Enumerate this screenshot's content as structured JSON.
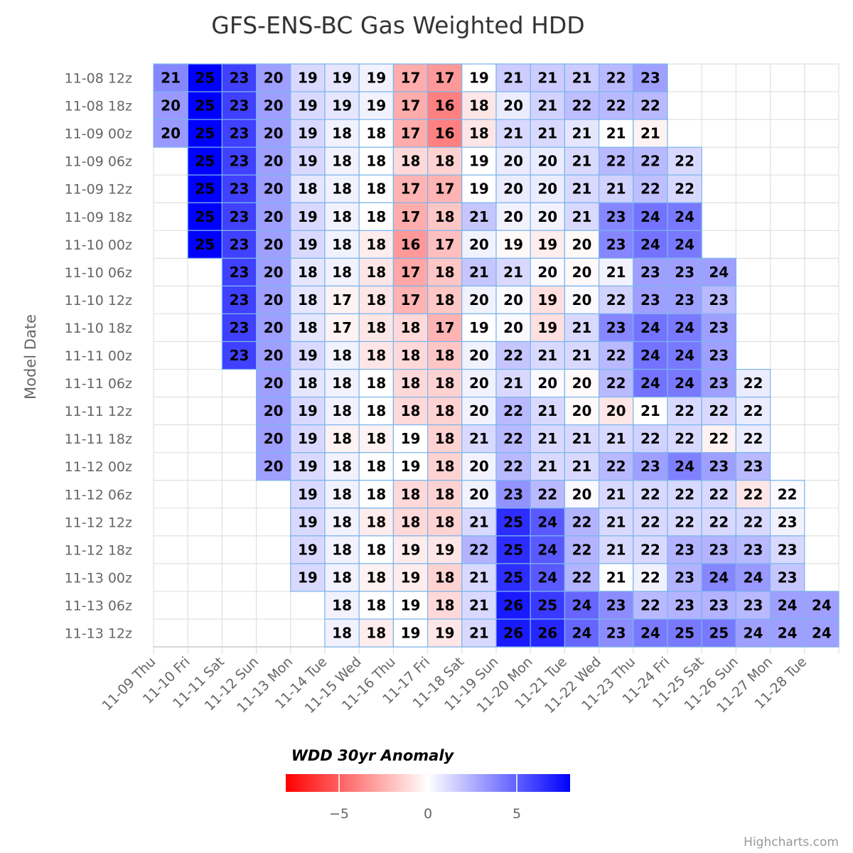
{
  "chart_data": {
    "type": "heatmap",
    "title": "GFS-ENS-BC Gas Weighted HDD",
    "ylabel": "Model Date",
    "x_categories": [
      "11-09 Thu",
      "11-10 Fri",
      "11-11 Sat",
      "11-12 Sun",
      "11-13 Mon",
      "11-14 Tue",
      "11-15 Wed",
      "11-16 Thu",
      "11-17 Fri",
      "11-18 Sat",
      "11-19 Sun",
      "11-20 Mon",
      "11-21 Tue",
      "11-22 Wed",
      "11-23 Thu",
      "11-24 Fri",
      "11-25 Sat",
      "11-26 Sun",
      "11-27 Mon",
      "11-28 Tue"
    ],
    "y_categories": [
      "11-08 12z",
      "11-08 18z",
      "11-09 00z",
      "11-09 06z",
      "11-09 12z",
      "11-09 18z",
      "11-10 00z",
      "11-10 06z",
      "11-10 12z",
      "11-10 18z",
      "11-11 00z",
      "11-11 06z",
      "11-11 12z",
      "11-11 18z",
      "11-12 00z",
      "11-12 06z",
      "11-12 12z",
      "11-12 18z",
      "11-13 00z",
      "11-13 06z",
      "11-13 12z"
    ],
    "rows": [
      {
        "start": 0,
        "values": [
          21,
          25,
          23,
          20,
          19,
          19,
          19,
          17,
          17,
          19,
          21,
          21,
          21,
          22,
          23
        ],
        "anomaly": [
          3.8,
          8,
          6,
          3,
          1.2,
          0.8,
          0.4,
          -2.6,
          -3.2,
          0,
          1.6,
          1.6,
          1.6,
          2.2,
          3
        ]
      },
      {
        "start": 0,
        "values": [
          20,
          25,
          23,
          20,
          19,
          19,
          19,
          17,
          16,
          18,
          20,
          21,
          22,
          22,
          22
        ],
        "anomaly": [
          3.2,
          8,
          6,
          3,
          1.2,
          0.8,
          0.4,
          -2.6,
          -4,
          -0.8,
          0.6,
          1.4,
          2,
          2.2,
          2.2
        ]
      },
      {
        "start": 0,
        "values": [
          20,
          25,
          23,
          20,
          19,
          18,
          18,
          17,
          16,
          18,
          21,
          21,
          21,
          21,
          21
        ],
        "anomaly": [
          3.2,
          8,
          6,
          3,
          1.2,
          0.4,
          0,
          -2.6,
          -4,
          -0.8,
          1.2,
          1.2,
          0.8,
          0,
          -0.4
        ]
      },
      {
        "start": 1,
        "values": [
          25,
          23,
          20,
          19,
          18,
          18,
          18,
          18,
          19,
          20,
          20,
          21,
          22,
          22,
          22
        ],
        "anomaly": [
          8,
          6,
          3,
          1.2,
          0.4,
          0,
          -1.2,
          -1.4,
          0,
          0.6,
          0.6,
          1.2,
          2.2,
          2.2,
          1.2
        ]
      },
      {
        "start": 1,
        "values": [
          25,
          23,
          20,
          18,
          18,
          18,
          17,
          17,
          19,
          20,
          20,
          21,
          21,
          22,
          22
        ],
        "anomaly": [
          8,
          6,
          3,
          0.8,
          0.4,
          0,
          -2.4,
          -2.4,
          0,
          0.6,
          0.6,
          1.2,
          1.4,
          2,
          1.2
        ]
      },
      {
        "start": 1,
        "values": [
          25,
          23,
          20,
          19,
          18,
          18,
          17,
          18,
          21,
          20,
          20,
          21,
          23,
          24,
          24
        ],
        "anomaly": [
          8,
          6,
          3,
          1.2,
          0.4,
          0,
          -2.6,
          -1.8,
          1.8,
          0.4,
          0.4,
          1.2,
          3.8,
          4.4,
          4.2
        ]
      },
      {
        "start": 1,
        "values": [
          25,
          23,
          20,
          19,
          18,
          18,
          16,
          17,
          20,
          19,
          19,
          20,
          23,
          24,
          24
        ],
        "anomaly": [
          8,
          6,
          3,
          1.2,
          0.4,
          -0.6,
          -3.2,
          -2,
          0.4,
          -0.2,
          -0.6,
          -0.2,
          3.8,
          4.4,
          4.2
        ]
      },
      {
        "start": 2,
        "values": [
          23,
          20,
          18,
          18,
          18,
          17,
          18,
          21,
          21,
          20,
          20,
          21,
          23,
          23,
          24
        ],
        "anomaly": [
          6,
          3,
          0.8,
          0.4,
          -0.8,
          -2.8,
          -1.8,
          1.8,
          1.2,
          0.2,
          -0.2,
          0.4,
          3,
          3,
          3
        ]
      },
      {
        "start": 2,
        "values": [
          23,
          20,
          18,
          17,
          18,
          17,
          18,
          20,
          20,
          19,
          20,
          22,
          23,
          23,
          23
        ],
        "anomaly": [
          6,
          3,
          0.8,
          -0.4,
          -0.8,
          -2.4,
          -1.8,
          0.4,
          0.2,
          -1,
          0.2,
          1.4,
          3,
          3,
          2.2
        ]
      },
      {
        "start": 2,
        "values": [
          23,
          20,
          18,
          17,
          18,
          18,
          17,
          19,
          20,
          19,
          21,
          23,
          24,
          24,
          23
        ],
        "anomaly": [
          6,
          3,
          0.8,
          -0.4,
          -0.8,
          -1.2,
          -2.4,
          0,
          0.2,
          -1,
          1.2,
          3.8,
          4.4,
          4.2,
          3
        ]
      },
      {
        "start": 2,
        "values": [
          23,
          20,
          19,
          18,
          18,
          18,
          18,
          20,
          22,
          21,
          21,
          22,
          24,
          24,
          23
        ],
        "anomaly": [
          6,
          3,
          1.2,
          0.4,
          -0.8,
          -1.2,
          -1.8,
          0.4,
          1.8,
          1.2,
          1.2,
          2.2,
          4.4,
          4.2,
          3
        ]
      },
      {
        "start": 3,
        "values": [
          20,
          18,
          18,
          18,
          18,
          18,
          20,
          21,
          20,
          20,
          22,
          24,
          24,
          23,
          22
        ],
        "anomaly": [
          3,
          0.8,
          0.4,
          0,
          -1.2,
          -1.4,
          0.4,
          1.2,
          0.2,
          -0.2,
          2.2,
          4.4,
          4.2,
          3,
          0.6
        ]
      },
      {
        "start": 3,
        "values": [
          20,
          19,
          18,
          18,
          18,
          18,
          20,
          22,
          21,
          20,
          20,
          21,
          22,
          22,
          22
        ],
        "anomaly": [
          3,
          1.2,
          0.4,
          0,
          -1.2,
          -1.4,
          0.4,
          2.2,
          1.2,
          -0.2,
          -0.8,
          0,
          1.2,
          1.2,
          0.6
        ]
      },
      {
        "start": 3,
        "values": [
          20,
          19,
          18,
          18,
          19,
          18,
          21,
          22,
          21,
          21,
          21,
          22,
          22,
          22,
          22
        ],
        "anomaly": [
          3,
          1.2,
          -0.4,
          -0.4,
          0,
          -1.4,
          1.2,
          2.2,
          1.2,
          1.2,
          1.2,
          1.4,
          1.2,
          -0.4,
          0.6
        ]
      },
      {
        "start": 3,
        "values": [
          20,
          19,
          18,
          18,
          19,
          18,
          20,
          22,
          21,
          21,
          22,
          23,
          24,
          23,
          23
        ],
        "anomaly": [
          3,
          1.2,
          0.4,
          0,
          0,
          -1.4,
          0.4,
          2.2,
          1.2,
          1.2,
          2.2,
          3,
          4,
          3,
          2.2
        ]
      },
      {
        "start": 4,
        "values": [
          19,
          18,
          18,
          18,
          18,
          20,
          23,
          22,
          20,
          21,
          22,
          22,
          22,
          22,
          22
        ],
        "anomaly": [
          1.2,
          0.4,
          0,
          -1.2,
          -1.4,
          0.4,
          3.4,
          2.2,
          0.2,
          1.2,
          1.2,
          1.2,
          1.2,
          -0.8,
          0.2
        ]
      },
      {
        "start": 4,
        "values": [
          19,
          18,
          18,
          18,
          18,
          21,
          25,
          24,
          22,
          21,
          22,
          22,
          22,
          22,
          23
        ],
        "anomaly": [
          1.2,
          0.4,
          -0.6,
          -1.2,
          -1.4,
          1.2,
          6.6,
          5.2,
          2.4,
          1.2,
          1.2,
          1.2,
          1.2,
          1.2,
          0.4
        ]
      },
      {
        "start": 4,
        "values": [
          19,
          18,
          18,
          19,
          19,
          22,
          25,
          24,
          22,
          21,
          22,
          23,
          23,
          23,
          23
        ],
        "anomaly": [
          1.2,
          0.4,
          0,
          -0.6,
          -0.8,
          2.4,
          6.6,
          5.2,
          2.4,
          1.2,
          1.2,
          2.4,
          2.4,
          2.2,
          1.2
        ]
      },
      {
        "start": 4,
        "values": [
          19,
          18,
          18,
          19,
          18,
          21,
          25,
          24,
          22,
          21,
          22,
          23,
          24,
          24,
          23
        ],
        "anomaly": [
          1.2,
          0.4,
          -0.4,
          -0.6,
          -1.4,
          1.2,
          6.6,
          5.2,
          2.4,
          0,
          0.4,
          2.4,
          3.8,
          3.2,
          1.8
        ]
      },
      {
        "start": 5,
        "values": [
          18,
          18,
          19,
          18,
          21,
          26,
          25,
          24,
          23,
          22,
          23,
          23,
          23,
          24,
          24
        ],
        "anomaly": [
          0.4,
          0,
          0,
          -1.2,
          1.2,
          7.2,
          6.2,
          4.8,
          3.6,
          2.2,
          2.4,
          2.4,
          2.2,
          3,
          3
        ]
      },
      {
        "start": 5,
        "values": [
          18,
          18,
          19,
          19,
          21,
          26,
          26,
          24,
          23,
          24,
          25,
          25,
          24,
          24,
          24
        ],
        "anomaly": [
          0.4,
          -0.6,
          0,
          -0.8,
          1.2,
          7.2,
          6.8,
          4.8,
          3.6,
          4.2,
          4.2,
          4.2,
          3,
          3,
          3
        ]
      }
    ],
    "colorAxis": {
      "min": -8,
      "max": 8,
      "minColor": "#ff0000",
      "midColor": "#ffffff",
      "maxColor": "#0000ff",
      "ticks": [
        -5,
        0,
        5
      ]
    },
    "legend": {
      "title": "WDD 30yr Anomaly",
      "placement": "bottom-center"
    },
    "grid": true
  },
  "credits": "Highcharts.com"
}
